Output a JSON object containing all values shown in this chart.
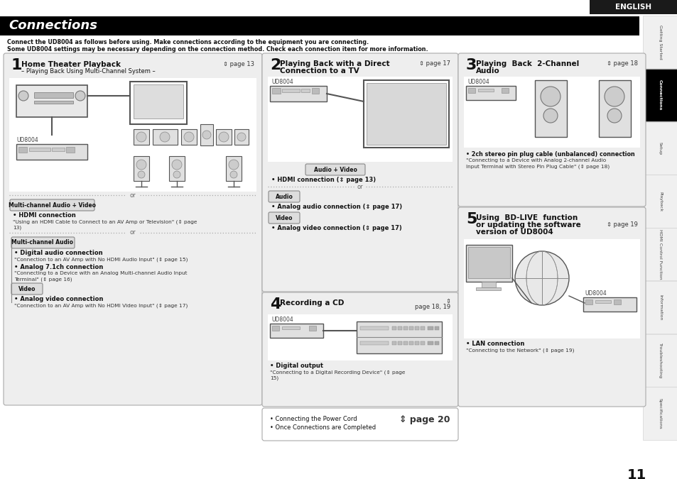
{
  "bg_color": "#ffffff",
  "title": "Connections",
  "title_bg": "#000000",
  "title_color": "#ffffff",
  "english_tab_bg": "#1a1a1a",
  "english_tab_color": "#ffffff",
  "english_text": "ENGLISH",
  "subtitle_line1": "Connect the UD8004 as follows before using. Make connections according to the equipment you are connecting.",
  "subtitle_line2": "Some UD8004 settings may be necessary depending on the connection method. Check each connection item for more information.",
  "page_number": "11",
  "sidebar_items": [
    "Getting Started",
    "Connections",
    "Setup",
    "Playback",
    "HDMI Control Function",
    "Information",
    "Troubleshooting",
    "Specifications"
  ],
  "sidebar_active": "Connections",
  "box_bg": "#eeeeee",
  "box_border": "#aaaaaa",
  "label_bg": "#cccccc",
  "label_border": "#888888"
}
